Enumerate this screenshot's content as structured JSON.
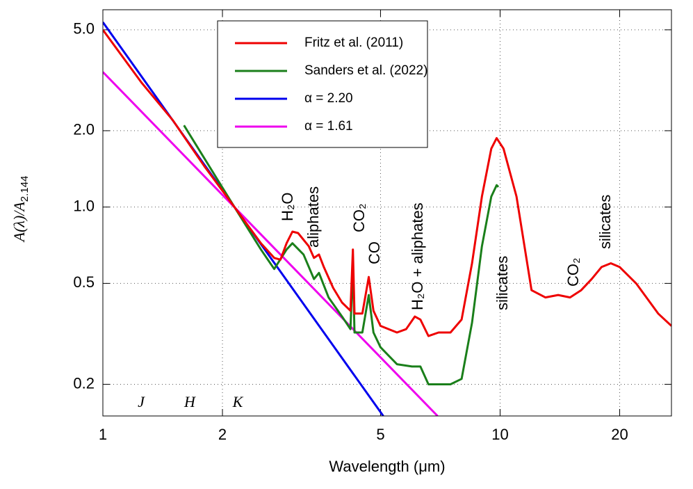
{
  "chart_data": {
    "type": "line",
    "xlabel": "Wavelength (μm)",
    "ylabel": "A(λ)/A",
    "ylabel_sub": "2.144",
    "xscale": "log",
    "yscale": "log",
    "grid": true,
    "legend": "upper center",
    "xlim": [
      1,
      27
    ],
    "ylim": [
      0.15,
      6
    ],
    "xticks": [
      1,
      2,
      5,
      10,
      20
    ],
    "yticks": [
      0.2,
      0.5,
      {
        "value": 1,
        "label": "1.0"
      },
      {
        "value": 2,
        "label": "2.0"
      },
      {
        "value": 5,
        "label": "5.0"
      }
    ],
    "series": [
      {
        "name": "Fritz et al. (2011)",
        "color": "#ee0000",
        "x": [
          1.0,
          1.25,
          1.5,
          1.8,
          2.144,
          2.5,
          2.7,
          2.8,
          2.9,
          3.0,
          3.1,
          3.3,
          3.4,
          3.5,
          3.6,
          3.8,
          4.0,
          4.2,
          4.26,
          4.3,
          4.5,
          4.67,
          4.8,
          5.0,
          5.5,
          5.8,
          6.1,
          6.3,
          6.6,
          7.0,
          7.5,
          8.0,
          8.5,
          9.0,
          9.5,
          9.8,
          10.2,
          11,
          12,
          13,
          14,
          15,
          16,
          17,
          18,
          19,
          20,
          22,
          25,
          27
        ],
        "values": [
          5.0,
          3.1,
          2.2,
          1.45,
          1.0,
          0.72,
          0.63,
          0.62,
          0.72,
          0.8,
          0.79,
          0.7,
          0.63,
          0.65,
          0.58,
          0.48,
          0.42,
          0.39,
          0.68,
          0.38,
          0.38,
          0.53,
          0.39,
          0.34,
          0.32,
          0.33,
          0.37,
          0.36,
          0.31,
          0.32,
          0.32,
          0.36,
          0.6,
          1.1,
          1.7,
          1.87,
          1.7,
          1.1,
          0.47,
          0.44,
          0.45,
          0.44,
          0.47,
          0.52,
          0.58,
          0.6,
          0.58,
          0.5,
          0.38,
          0.34
        ]
      },
      {
        "name": "Sanders et al. (2022)",
        "color": "#1a7f1a",
        "x": [
          1.6,
          2.144,
          2.5,
          2.7,
          2.9,
          3.0,
          3.2,
          3.4,
          3.5,
          3.7,
          4.0,
          4.2,
          4.26,
          4.3,
          4.5,
          4.67,
          4.8,
          5.0,
          5.5,
          6.0,
          6.3,
          6.6,
          7.0,
          7.5,
          8.0,
          8.5,
          9.0,
          9.5,
          9.8,
          9.9
        ],
        "values": [
          2.1,
          1.0,
          0.68,
          0.57,
          0.68,
          0.72,
          0.65,
          0.52,
          0.55,
          0.44,
          0.37,
          0.33,
          0.6,
          0.32,
          0.32,
          0.45,
          0.32,
          0.28,
          0.24,
          0.235,
          0.235,
          0.2,
          0.2,
          0.2,
          0.21,
          0.35,
          0.7,
          1.1,
          1.22,
          1.2
        ]
      },
      {
        "name": "α = 2.20",
        "color": "#0000ee",
        "x": [
          1,
          5.08
        ],
        "values": [
          5.36,
          0.15
        ]
      },
      {
        "name": "α = 1.61",
        "color": "#ee00ee",
        "x": [
          1,
          6.96
        ],
        "values": [
          3.41,
          0.15
        ]
      }
    ],
    "annotations": [
      "H₂O",
      "aliphates",
      "CO₂",
      "CO",
      "H₂O + aliphates",
      "silicates",
      "CO₂",
      "silicates"
    ],
    "band_labels": [
      "J",
      "H",
      "K"
    ]
  }
}
